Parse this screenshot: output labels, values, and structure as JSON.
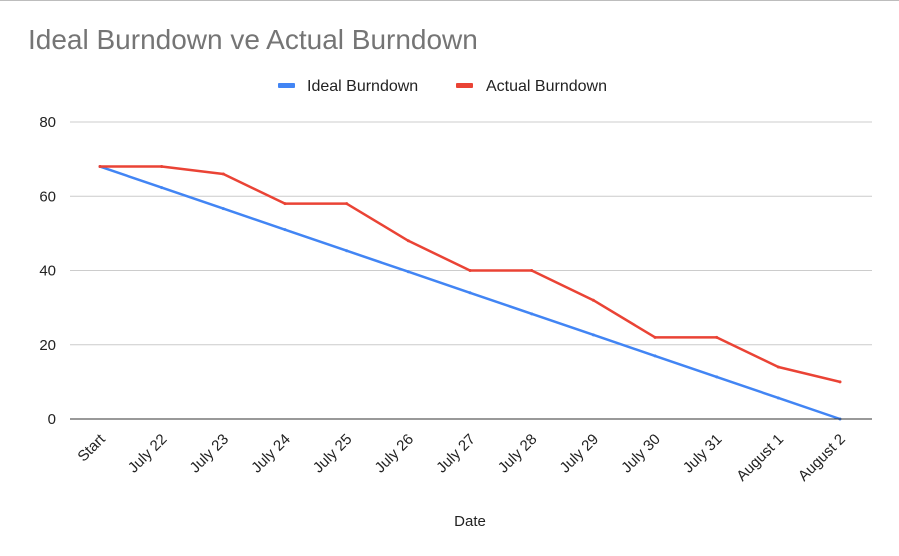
{
  "chart_data": {
    "type": "line",
    "title": "Ideal Burndown ve Actual Burndown",
    "xlabel": "Date",
    "ylabel": "",
    "categories": [
      "Start",
      "July 22",
      "July 23",
      "July 24",
      "July 25",
      "July 26",
      "July 27",
      "July 28",
      "July 29",
      "July 30",
      "July 31",
      "August 1",
      "August 2"
    ],
    "series": [
      {
        "name": "Ideal Burndown",
        "color": "#4285f4",
        "values": [
          68,
          62.33,
          56.67,
          51,
          45.33,
          39.67,
          34,
          28.33,
          22.67,
          17,
          11.33,
          5.67,
          0
        ]
      },
      {
        "name": "Actual Burndown",
        "color": "#ea4335",
        "values": [
          68,
          68,
          66,
          58,
          58,
          48,
          40,
          40,
          32,
          22,
          22,
          14,
          10
        ]
      }
    ],
    "ylim": [
      0,
      80
    ],
    "yticks": [
      0,
      20,
      40,
      60,
      80
    ],
    "grid": true,
    "legend_position": "top"
  }
}
